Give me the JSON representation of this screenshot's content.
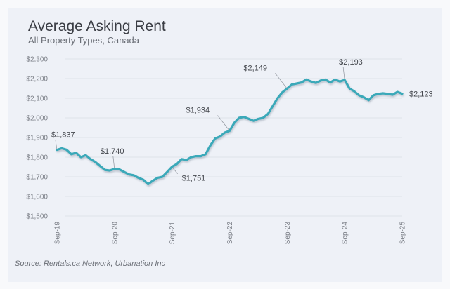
{
  "chart_data": {
    "type": "line",
    "title": "Average Asking Rent",
    "subtitle": "All Property Types, Canada",
    "xlabel": "",
    "ylabel": "",
    "ylim": [
      1500,
      2300
    ],
    "yticks": [
      "$1,500",
      "$1,600",
      "$1,700",
      "$1,800",
      "$1,900",
      "$2,000",
      "$2,100",
      "$2,200",
      "$2,300"
    ],
    "ytick_values": [
      1500,
      1600,
      1700,
      1800,
      1900,
      2000,
      2100,
      2200,
      2300
    ],
    "xticks": [
      "Sep-19",
      "Sep-20",
      "Sep-21",
      "Sep-22",
      "Sep-23",
      "Sep-24",
      "Sep-25"
    ],
    "xtick_index": [
      0,
      12,
      24,
      36,
      48,
      60,
      72
    ],
    "grid": true,
    "series": [
      {
        "name": "Average Asking Rent",
        "color": "#3aa9b9",
        "frequency": "monthly",
        "start": "Sep-19",
        "values": [
          1837,
          1845,
          1838,
          1815,
          1822,
          1800,
          1810,
          1790,
          1775,
          1755,
          1735,
          1732,
          1740,
          1738,
          1725,
          1712,
          1708,
          1695,
          1685,
          1662,
          1680,
          1695,
          1700,
          1725,
          1751,
          1765,
          1790,
          1785,
          1800,
          1805,
          1805,
          1815,
          1860,
          1895,
          1905,
          1925,
          1934,
          1975,
          2000,
          2005,
          1995,
          1985,
          1995,
          2000,
          2020,
          2060,
          2100,
          2130,
          2149,
          2170,
          2175,
          2180,
          2195,
          2185,
          2178,
          2190,
          2195,
          2180,
          2195,
          2185,
          2193,
          2150,
          2135,
          2115,
          2105,
          2090,
          2115,
          2122,
          2125,
          2122,
          2118,
          2132,
          2123
        ]
      }
    ],
    "annotations": [
      {
        "index": 0,
        "text": "$1,837"
      },
      {
        "index": 12,
        "text": "$1,740"
      },
      {
        "index": 24,
        "text": "$1,751"
      },
      {
        "index": 36,
        "text": "$1,934"
      },
      {
        "index": 48,
        "text": "$2,149"
      },
      {
        "index": 60,
        "text": "$2,193"
      },
      {
        "index": 72,
        "text": "$2,123"
      }
    ],
    "source": "Source: Rentals.ca Network, Urbanation Inc"
  }
}
